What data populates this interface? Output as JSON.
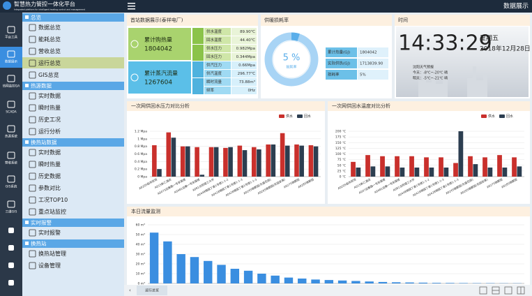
{
  "header": {
    "title": "智慧热力管控一体化平台",
    "subtitle": "Integrated platform for intelligent heating control and management",
    "page": "数据展示"
  },
  "sidebar": [
    "平台工具",
    "数据展示",
    "热网监控QA",
    "SCADA",
    "热源系统",
    "营收系统",
    "GIS系统",
    "三维GIS"
  ],
  "nav": [
    {
      "title": "总览",
      "items": [
        "数据总览",
        "能耗总览",
        "营收总览",
        "运行总览",
        "GIS总览"
      ]
    },
    {
      "title": "热源数据",
      "items": [
        "实时数据",
        "瞬时热量",
        "历史工况",
        "运行分析"
      ]
    },
    {
      "title": "换热站数据",
      "items": [
        "实时数据",
        "瞬时热量",
        "历史数据",
        "参数对比",
        "工况TOP10",
        "重点站监控"
      ]
    },
    {
      "title": "实时报警",
      "items": [
        "实时报警"
      ]
    },
    {
      "title": "换热站",
      "items": [
        "换热站管理",
        "设备管理"
      ]
    }
  ],
  "station": {
    "title": "首站数据展示(泰祥电厂)",
    "boxes": [
      {
        "label": "累计购热量",
        "value": "1804042"
      },
      {
        "label": "累计蒸汽流量",
        "value": "1267604"
      }
    ],
    "readings": [
      {
        "label": "供水温度",
        "value": "89.90℃"
      },
      {
        "label": "回水温度",
        "value": "44.40℃"
      },
      {
        "label": "供水压力",
        "value": "0.982Mpa"
      },
      {
        "label": "回水压力",
        "value": "0.344Mpa"
      },
      {
        "label": "供汽压力",
        "value": "0.66Mpa"
      },
      {
        "label": "供汽温度",
        "value": "296.77℃"
      },
      {
        "label": "瞬时流量",
        "value": "73.88m³"
      },
      {
        "label": "频率",
        "value": "0Hz"
      }
    ]
  },
  "loss": {
    "title": "供暖损耗率",
    "rows": [
      [
        "累计热量(GJ)",
        "1804042"
      ],
      [
        "实际供热(GJ)",
        "1713839.90"
      ],
      [
        "损耗率",
        "5%"
      ]
    ]
  },
  "time": {
    "title": "时间",
    "clock": "14:33:29",
    "weekday": "星期五",
    "date": "2018年12月28日",
    "weather_title": "沈阳天气预报",
    "today": "今天：-8℃~-20℃ 晴",
    "tomorrow": "明天：-5℃~-21℃ 晴"
  },
  "footer": {
    "tab": "运行总览"
  },
  "chart_data": [
    {
      "type": "pie",
      "values": [
        5
      ],
      "value_labels": [
        "5 %"
      ],
      "subtitle": "损耗率",
      "color": "#5aaeea"
    },
    {
      "type": "bar",
      "title": "一次网供回水压力对比分析",
      "categories": [
        "A0205临祥宾馆",
        "A015新乙酒店",
        "A0473迎春路一号家属楼",
        "A0481迎春一号家属楼",
        "A081沈阳理工大学",
        "A0448锦园丁香1号楼1-1-2",
        "A0418锦园丁香1号楼1-1-3",
        "A0428锦园丁香1号楼1-1-3",
        "A0245锦都园(东盛花园)",
        "A0265锦都园(花园家属)",
        "A0275锦都园",
        "A0285锦都园"
      ],
      "series": [
        {
          "name": "供水",
          "color": "#c9302c",
          "values": [
            0.83,
            1.17,
            0.8,
            0.78,
            0.78,
            0.76,
            0.82,
            0.78,
            0.85,
            1.15,
            0.85,
            0.83
          ]
        },
        {
          "name": "回水",
          "color": "#2c3e50",
          "values": [
            0.2,
            1.03,
            0.8,
            0.05,
            0.78,
            0.78,
            0.7,
            0.72,
            0.85,
            0.82,
            0.82,
            0.8
          ]
        }
      ],
      "ylim": [
        0,
        1.2
      ],
      "yticks": [
        {
          "value": 0,
          "label": "0 Mpa"
        },
        {
          "value": 0.2,
          "label": "0.2 Mpa"
        },
        {
          "value": 0.4,
          "label": "0.4 Mpa"
        },
        {
          "value": 0.6,
          "label": "0.6 Mpa"
        },
        {
          "value": 0.8,
          "label": "0.8 Mpa"
        },
        {
          "value": 1,
          "label": "1 Mpa"
        },
        {
          "value": 1.2,
          "label": "1.2 Mpa"
        }
      ],
      "grid": true
    },
    {
      "type": "bar",
      "title": "一次网供回水温度对比分析",
      "categories": [
        "A0205临祥宾馆",
        "A015新乙酒店",
        "A047迎春路一号家属楼",
        "A0481迎春一号家属楼",
        "A081沈阳理工大学",
        "A0448锦园丁香1号楼1-1-2",
        "A0418锦园丁香1号楼1-1-3",
        "A0428锦园丁香1号楼1-1-3",
        "A0245锦都园(东盛花园)",
        "A0265锦都园(花园家属)",
        "A0275锦都园",
        "A0285锦都园"
      ],
      "series": [
        {
          "name": "供水",
          "color": "#c9302c",
          "values": [
            65,
            95,
            90,
            90,
            90,
            85,
            85,
            60,
            90,
            85,
            95,
            85
          ]
        },
        {
          "name": "回水",
          "color": "#2c3e50",
          "values": [
            40,
            45,
            45,
            40,
            40,
            40,
            40,
            200,
            55,
            40,
            40,
            45
          ]
        }
      ],
      "ylim": [
        0,
        200
      ],
      "yticks": [
        {
          "value": 0,
          "label": "0 ℃"
        },
        {
          "value": 25,
          "label": "25 ℃"
        },
        {
          "value": 50,
          "label": "50 ℃"
        },
        {
          "value": 75,
          "label": "75 ℃"
        },
        {
          "value": 100,
          "label": "100 ℃"
        },
        {
          "value": 125,
          "label": "125 ℃"
        },
        {
          "value": 150,
          "label": "150 ℃"
        },
        {
          "value": 175,
          "label": "175 ℃"
        },
        {
          "value": 200,
          "label": "200 ℃"
        }
      ],
      "grid": true
    },
    {
      "type": "bar",
      "title": "本日流量监测",
      "color": "#3a8ee0",
      "values": [
        52,
        43,
        30,
        27,
        23,
        19,
        15,
        13,
        10,
        8,
        6,
        5,
        4,
        3.5,
        3,
        2.5,
        2,
        1.5,
        1.2,
        1,
        0.8,
        0.6,
        0.5,
        0.4,
        0.3,
        0.3,
        0.2,
        0.2
      ],
      "ylim": [
        0,
        60
      ],
      "yticks": [
        {
          "value": 0,
          "label": "0 m³"
        },
        {
          "value": 10,
          "label": "10 m³"
        },
        {
          "value": 20,
          "label": "20 m³"
        },
        {
          "value": 30,
          "label": "30 m³"
        },
        {
          "value": 40,
          "label": "40 m³"
        },
        {
          "value": 50,
          "label": "50 m³"
        },
        {
          "value": 60,
          "label": "60 m³"
        }
      ],
      "grid": true
    }
  ]
}
